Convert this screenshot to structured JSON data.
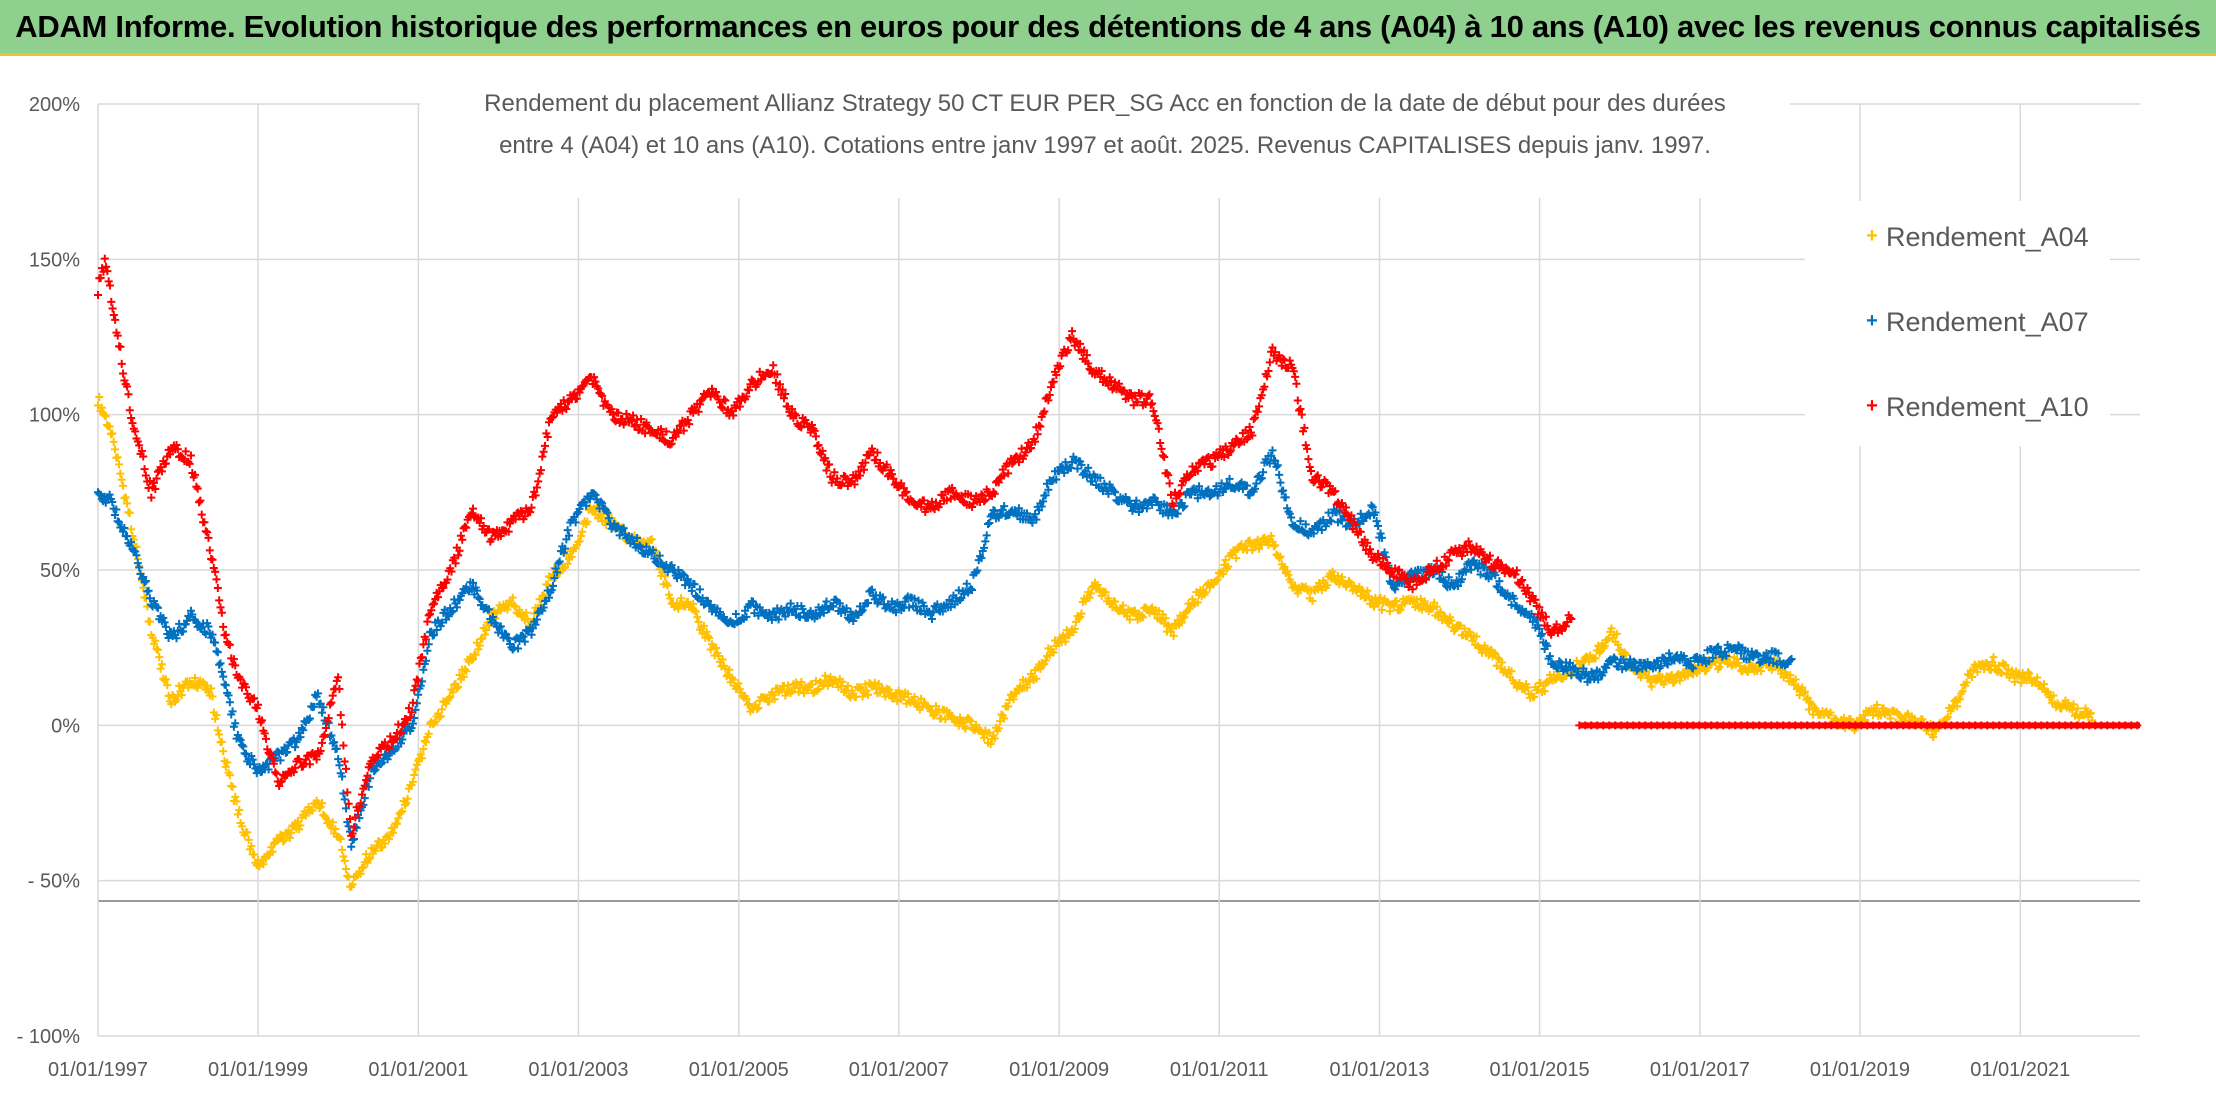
{
  "banner": {
    "title": "ADAM Informe. Evolution historique des performances en euros pour des détentions de 4 ans (A04) à 10 ans (A10) avec les revenus connus capitalisés"
  },
  "colors": {
    "banner_bg": "#8fd08f",
    "banner_border": "#e8c33a",
    "a04": "#ffc000",
    "a07": "#0070c0",
    "a10": "#ff0000"
  },
  "chart_data": {
    "type": "scatter",
    "title_lines": [
      "Rendement du placement Allianz Strategy 50 CT EUR PER_SG Acc en fonction de la date de début pour des durées",
      "entre 4 (A04) et 10 ans (A10). Cotations entre janv 1997 et août. 2025. Revenus CAPITALISES depuis janv. 1997."
    ],
    "xlabel": "",
    "ylabel": "",
    "x_axis": {
      "type": "date",
      "range": [
        "1997-01-01",
        "2022-07-01"
      ],
      "ticks": [
        "01/01/1997",
        "01/01/1999",
        "01/01/2001",
        "01/01/2003",
        "01/01/2005",
        "01/01/2007",
        "01/01/2009",
        "01/01/2011",
        "01/01/2013",
        "01/01/2015",
        "01/01/2017",
        "01/01/2019",
        "01/01/2021"
      ]
    },
    "y_axis": {
      "unit": "percent",
      "range": [
        -100,
        200
      ],
      "ticks": [
        -100,
        -50,
        0,
        50,
        100,
        150,
        200
      ],
      "tick_labels": [
        "- 100%",
        "- 50%",
        "0%",
        "50%",
        "100%",
        "150%",
        "200%"
      ]
    },
    "grid": {
      "vertical": true,
      "horizontal": true
    },
    "legend": {
      "position": "top-right"
    },
    "marker": "+",
    "series": [
      {
        "name": "Rendement_A04",
        "color": "#ffc000",
        "points": [
          [
            "1997-01-01",
            105
          ],
          [
            "1997-03-01",
            95
          ],
          [
            "1997-06-01",
            65
          ],
          [
            "1997-09-01",
            30
          ],
          [
            "1997-12-01",
            8
          ],
          [
            "1998-03-01",
            15
          ],
          [
            "1998-06-01",
            10
          ],
          [
            "1998-08-01",
            -10
          ],
          [
            "1998-10-01",
            -28
          ],
          [
            "1999-01-01",
            -45
          ],
          [
            "1999-04-01",
            -38
          ],
          [
            "1999-07-01",
            -32
          ],
          [
            "1999-10-01",
            -25
          ],
          [
            "2000-01-01",
            -35
          ],
          [
            "2000-03-01",
            -52
          ],
          [
            "2000-06-01",
            -40
          ],
          [
            "2000-09-01",
            -35
          ],
          [
            "2000-12-01",
            -20
          ],
          [
            "2001-03-01",
            0
          ],
          [
            "2001-06-01",
            10
          ],
          [
            "2001-09-01",
            22
          ],
          [
            "2001-12-01",
            35
          ],
          [
            "2002-03-01",
            40
          ],
          [
            "2002-06-01",
            33
          ],
          [
            "2002-09-01",
            48
          ],
          [
            "2002-12-01",
            55
          ],
          [
            "2003-03-01",
            70
          ],
          [
            "2003-06-01",
            65
          ],
          [
            "2003-09-01",
            60
          ],
          [
            "2003-12-01",
            58
          ],
          [
            "2004-03-01",
            40
          ],
          [
            "2004-06-01",
            38
          ],
          [
            "2004-09-01",
            25
          ],
          [
            "2004-12-01",
            15
          ],
          [
            "2005-03-01",
            5
          ],
          [
            "2005-06-01",
            10
          ],
          [
            "2005-09-01",
            12
          ],
          [
            "2005-12-01",
            12
          ],
          [
            "2006-03-01",
            15
          ],
          [
            "2006-06-01",
            10
          ],
          [
            "2006-09-01",
            12
          ],
          [
            "2006-12-01",
            10
          ],
          [
            "2007-03-01",
            8
          ],
          [
            "2007-06-01",
            5
          ],
          [
            "2007-09-01",
            2
          ],
          [
            "2007-12-01",
            0
          ],
          [
            "2008-03-01",
            -5
          ],
          [
            "2008-06-01",
            10
          ],
          [
            "2008-09-01",
            15
          ],
          [
            "2008-12-01",
            25
          ],
          [
            "2009-03-01",
            30
          ],
          [
            "2009-06-01",
            45
          ],
          [
            "2009-09-01",
            40
          ],
          [
            "2009-12-01",
            35
          ],
          [
            "2010-03-01",
            38
          ],
          [
            "2010-06-01",
            30
          ],
          [
            "2010-09-01",
            40
          ],
          [
            "2010-12-01",
            45
          ],
          [
            "2011-03-01",
            55
          ],
          [
            "2011-06-01",
            58
          ],
          [
            "2011-09-01",
            60
          ],
          [
            "2011-12-01",
            45
          ],
          [
            "2012-03-01",
            42
          ],
          [
            "2012-06-01",
            48
          ],
          [
            "2012-09-01",
            45
          ],
          [
            "2012-12-01",
            40
          ],
          [
            "2013-03-01",
            38
          ],
          [
            "2013-06-01",
            40
          ],
          [
            "2013-09-01",
            38
          ],
          [
            "2013-12-01",
            32
          ],
          [
            "2014-03-01",
            28
          ],
          [
            "2014-06-01",
            22
          ],
          [
            "2014-09-01",
            15
          ],
          [
            "2014-12-01",
            10
          ],
          [
            "2015-03-01",
            15
          ],
          [
            "2015-06-01",
            18
          ],
          [
            "2015-09-01",
            22
          ],
          [
            "2015-12-01",
            30
          ],
          [
            "2016-03-01",
            18
          ],
          [
            "2016-06-01",
            14
          ],
          [
            "2016-09-01",
            15
          ],
          [
            "2016-12-01",
            18
          ],
          [
            "2017-03-01",
            20
          ],
          [
            "2017-06-01",
            20
          ],
          [
            "2017-09-01",
            18
          ],
          [
            "2017-12-01",
            20
          ],
          [
            "2018-03-01",
            15
          ],
          [
            "2018-06-01",
            5
          ],
          [
            "2018-09-01",
            2
          ],
          [
            "2018-12-01",
            0
          ],
          [
            "2019-03-01",
            5
          ],
          [
            "2019-06-01",
            3
          ],
          [
            "2019-09-01",
            2
          ],
          [
            "2019-12-01",
            -2
          ],
          [
            "2020-03-01",
            5
          ],
          [
            "2020-06-01",
            18
          ],
          [
            "2020-09-01",
            20
          ],
          [
            "2020-12-01",
            16
          ],
          [
            "2021-03-01",
            15
          ],
          [
            "2021-06-01",
            8
          ],
          [
            "2021-09-01",
            5
          ],
          [
            "2021-12-01",
            3
          ]
        ]
      },
      {
        "name": "Rendement_A07",
        "color": "#0070c0",
        "points": [
          [
            "1997-01-01",
            75
          ],
          [
            "1997-03-01",
            72
          ],
          [
            "1997-06-01",
            58
          ],
          [
            "1997-09-01",
            40
          ],
          [
            "1997-12-01",
            28
          ],
          [
            "1998-03-01",
            35
          ],
          [
            "1998-06-01",
            30
          ],
          [
            "1998-08-01",
            15
          ],
          [
            "1998-10-01",
            -5
          ],
          [
            "1999-01-01",
            -15
          ],
          [
            "1999-04-01",
            -10
          ],
          [
            "1999-07-01",
            -5
          ],
          [
            "1999-10-01",
            10
          ],
          [
            "2000-01-01",
            -10
          ],
          [
            "2000-03-01",
            -38
          ],
          [
            "2000-06-01",
            -15
          ],
          [
            "2000-09-01",
            -8
          ],
          [
            "2000-12-01",
            0
          ],
          [
            "2001-03-01",
            30
          ],
          [
            "2001-06-01",
            38
          ],
          [
            "2001-09-01",
            45
          ],
          [
            "2001-12-01",
            35
          ],
          [
            "2002-03-01",
            25
          ],
          [
            "2002-06-01",
            30
          ],
          [
            "2002-09-01",
            45
          ],
          [
            "2002-12-01",
            65
          ],
          [
            "2003-03-01",
            75
          ],
          [
            "2003-06-01",
            65
          ],
          [
            "2003-09-01",
            60
          ],
          [
            "2003-12-01",
            55
          ],
          [
            "2004-03-01",
            50
          ],
          [
            "2004-06-01",
            45
          ],
          [
            "2004-09-01",
            38
          ],
          [
            "2004-12-01",
            33
          ],
          [
            "2005-03-01",
            38
          ],
          [
            "2005-06-01",
            35
          ],
          [
            "2005-09-01",
            38
          ],
          [
            "2005-12-01",
            35
          ],
          [
            "2006-03-01",
            40
          ],
          [
            "2006-06-01",
            35
          ],
          [
            "2006-09-01",
            42
          ],
          [
            "2006-12-01",
            38
          ],
          [
            "2007-03-01",
            40
          ],
          [
            "2007-06-01",
            36
          ],
          [
            "2007-09-01",
            40
          ],
          [
            "2007-12-01",
            45
          ],
          [
            "2008-03-01",
            68
          ],
          [
            "2008-06-01",
            70
          ],
          [
            "2008-09-01",
            65
          ],
          [
            "2008-12-01",
            80
          ],
          [
            "2009-03-01",
            85
          ],
          [
            "2009-06-01",
            80
          ],
          [
            "2009-09-01",
            75
          ],
          [
            "2009-12-01",
            70
          ],
          [
            "2010-03-01",
            72
          ],
          [
            "2010-06-01",
            68
          ],
          [
            "2010-09-01",
            75
          ],
          [
            "2010-12-01",
            75
          ],
          [
            "2011-03-01",
            78
          ],
          [
            "2011-06-01",
            75
          ],
          [
            "2011-09-01",
            88
          ],
          [
            "2011-12-01",
            65
          ],
          [
            "2012-03-01",
            62
          ],
          [
            "2012-06-01",
            68
          ],
          [
            "2012-09-01",
            65
          ],
          [
            "2012-12-01",
            70
          ],
          [
            "2013-03-01",
            45
          ],
          [
            "2013-06-01",
            48
          ],
          [
            "2013-09-01",
            50
          ],
          [
            "2013-12-01",
            45
          ],
          [
            "2014-03-01",
            52
          ],
          [
            "2014-06-01",
            48
          ],
          [
            "2014-09-01",
            40
          ],
          [
            "2014-12-01",
            35
          ],
          [
            "2015-03-01",
            20
          ],
          [
            "2015-06-01",
            18
          ],
          [
            "2015-09-01",
            15
          ],
          [
            "2015-12-01",
            20
          ],
          [
            "2016-03-01",
            20
          ],
          [
            "2016-06-01",
            18
          ],
          [
            "2016-09-01",
            22
          ],
          [
            "2016-12-01",
            20
          ],
          [
            "2017-03-01",
            23
          ],
          [
            "2017-06-01",
            25
          ],
          [
            "2017-09-01",
            22
          ],
          [
            "2017-12-01",
            22
          ],
          [
            "2018-03-01",
            20
          ]
        ]
      },
      {
        "name": "Rendement_A10",
        "color": "#ff0000",
        "points": [
          [
            "1997-01-01",
            140
          ],
          [
            "1997-02-01",
            150
          ],
          [
            "1997-04-01",
            125
          ],
          [
            "1997-06-01",
            100
          ],
          [
            "1997-09-01",
            75
          ],
          [
            "1997-12-01",
            90
          ],
          [
            "1998-03-01",
            85
          ],
          [
            "1998-06-01",
            55
          ],
          [
            "1998-08-01",
            30
          ],
          [
            "1998-10-01",
            15
          ],
          [
            "1999-01-01",
            5
          ],
          [
            "1999-04-01",
            -18
          ],
          [
            "1999-07-01",
            -12
          ],
          [
            "1999-10-01",
            -10
          ],
          [
            "2000-01-01",
            15
          ],
          [
            "2000-03-01",
            -35
          ],
          [
            "2000-06-01",
            -10
          ],
          [
            "2000-09-01",
            -5
          ],
          [
            "2000-12-01",
            5
          ],
          [
            "2001-03-01",
            38
          ],
          [
            "2001-06-01",
            50
          ],
          [
            "2001-09-01",
            70
          ],
          [
            "2001-12-01",
            60
          ],
          [
            "2002-03-01",
            65
          ],
          [
            "2002-06-01",
            70
          ],
          [
            "2002-09-01",
            100
          ],
          [
            "2002-12-01",
            105
          ],
          [
            "2003-03-01",
            112
          ],
          [
            "2003-06-01",
            100
          ],
          [
            "2003-09-01",
            98
          ],
          [
            "2003-12-01",
            95
          ],
          [
            "2004-03-01",
            92
          ],
          [
            "2004-06-01",
            100
          ],
          [
            "2004-09-01",
            108
          ],
          [
            "2004-12-01",
            100
          ],
          [
            "2005-03-01",
            110
          ],
          [
            "2005-06-01",
            115
          ],
          [
            "2005-09-01",
            100
          ],
          [
            "2005-12-01",
            95
          ],
          [
            "2006-03-01",
            80
          ],
          [
            "2006-06-01",
            78
          ],
          [
            "2006-09-01",
            88
          ],
          [
            "2006-12-01",
            80
          ],
          [
            "2007-03-01",
            72
          ],
          [
            "2007-06-01",
            70
          ],
          [
            "2007-09-01",
            75
          ],
          [
            "2007-12-01",
            72
          ],
          [
            "2008-03-01",
            75
          ],
          [
            "2008-06-01",
            85
          ],
          [
            "2008-09-01",
            90
          ],
          [
            "2008-12-01",
            110
          ],
          [
            "2009-03-01",
            125
          ],
          [
            "2009-06-01",
            115
          ],
          [
            "2009-09-01",
            110
          ],
          [
            "2009-12-01",
            105
          ],
          [
            "2010-03-01",
            105
          ],
          [
            "2010-06-01",
            72
          ],
          [
            "2010-09-01",
            82
          ],
          [
            "2010-12-01",
            85
          ],
          [
            "2011-03-01",
            90
          ],
          [
            "2011-06-01",
            95
          ],
          [
            "2011-09-01",
            120
          ],
          [
            "2011-12-01",
            115
          ],
          [
            "2012-03-01",
            80
          ],
          [
            "2012-06-01",
            75
          ],
          [
            "2012-09-01",
            65
          ],
          [
            "2012-12-01",
            55
          ],
          [
            "2013-03-01",
            50
          ],
          [
            "2013-06-01",
            45
          ],
          [
            "2013-09-01",
            50
          ],
          [
            "2013-12-01",
            55
          ],
          [
            "2014-03-01",
            58
          ],
          [
            "2014-06-01",
            52
          ],
          [
            "2014-09-01",
            50
          ],
          [
            "2014-12-01",
            40
          ],
          [
            "2015-03-01",
            30
          ],
          [
            "2015-06-01",
            35
          ]
        ],
        "flat_zero_from": "2015-07-01"
      }
    ]
  }
}
